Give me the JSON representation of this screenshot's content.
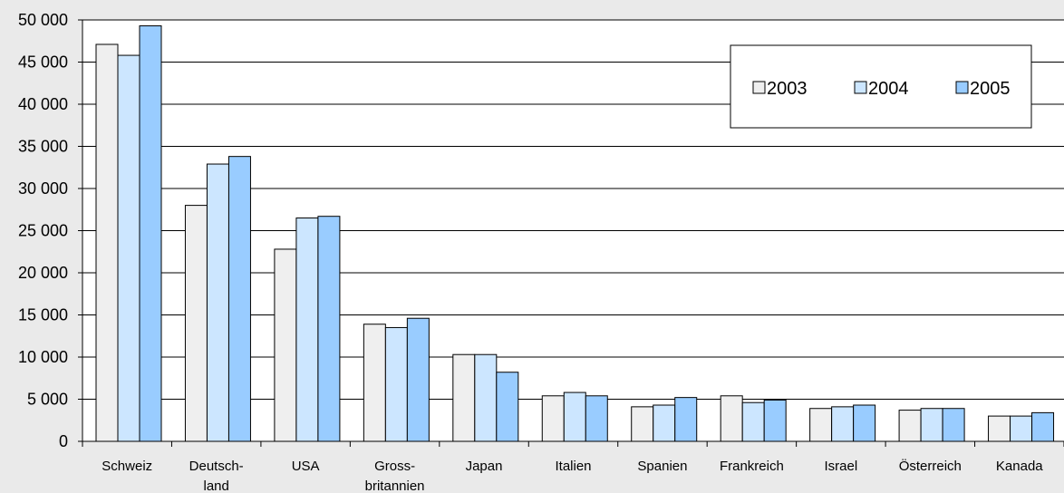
{
  "chart_data": {
    "type": "bar",
    "categories": [
      "Schweiz",
      "Deutsch-\nland",
      "USA",
      "Gross-\nbritannien",
      "Japan",
      "Italien",
      "Spanien",
      "Frankreich",
      "Israel",
      "Österreich",
      "Kanada"
    ],
    "series": [
      {
        "name": "2003",
        "color": "#efefef",
        "values": [
          47100,
          28000,
          22800,
          13900,
          10300,
          5400,
          4100,
          5400,
          3900,
          3700,
          3000
        ]
      },
      {
        "name": "2004",
        "color": "#cce6ff",
        "values": [
          45800,
          32900,
          26500,
          13500,
          10300,
          5800,
          4300,
          4600,
          4100,
          3900,
          3000
        ]
      },
      {
        "name": "2005",
        "color": "#99ccff",
        "values": [
          49300,
          33800,
          26700,
          14600,
          8200,
          5400,
          5200,
          4900,
          4300,
          3900,
          3400
        ]
      }
    ],
    "ylim": [
      0,
      50000
    ],
    "yticks": [
      "0",
      "5 000",
      "10 000",
      "15 000",
      "20 000",
      "25 000",
      "30 000",
      "35 000",
      "40 000",
      "45 000",
      "50 000"
    ],
    "grid": true,
    "legend_position": "top-right",
    "title": "",
    "xlabel": "",
    "ylabel": ""
  }
}
